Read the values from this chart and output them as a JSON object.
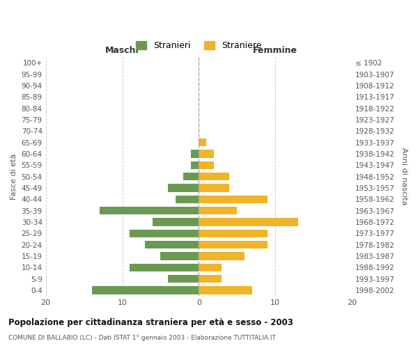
{
  "age_groups": [
    "100+",
    "95-99",
    "90-94",
    "85-89",
    "80-84",
    "75-79",
    "70-74",
    "65-69",
    "60-64",
    "55-59",
    "50-54",
    "45-49",
    "40-44",
    "35-39",
    "30-34",
    "25-29",
    "20-24",
    "15-19",
    "10-14",
    "5-9",
    "0-4"
  ],
  "birth_years": [
    "≤ 1902",
    "1903-1907",
    "1908-1912",
    "1913-1917",
    "1918-1922",
    "1923-1927",
    "1928-1932",
    "1933-1937",
    "1938-1942",
    "1943-1947",
    "1948-1952",
    "1953-1957",
    "1958-1962",
    "1963-1967",
    "1968-1972",
    "1973-1977",
    "1978-1982",
    "1983-1987",
    "1988-1992",
    "1993-1997",
    "1998-2002"
  ],
  "maschi": [
    0,
    0,
    0,
    0,
    0,
    0,
    0,
    0,
    1,
    1,
    2,
    4,
    3,
    13,
    6,
    9,
    7,
    5,
    9,
    4,
    14
  ],
  "femmine": [
    0,
    0,
    0,
    0,
    0,
    0,
    0,
    1,
    2,
    2,
    4,
    4,
    9,
    5,
    13,
    9,
    9,
    6,
    3,
    3,
    7
  ],
  "color_maschi": "#6a9a52",
  "color_femmine": "#f0b429",
  "title": "Popolazione per cittadinanza straniera per età e sesso - 2003",
  "subtitle": "COMUNE DI BALLABIO (LC) - Dati ISTAT 1° gennaio 2003 - Elaborazione TUTTITALIA.IT",
  "xlabel_left": "Maschi",
  "xlabel_right": "Femmine",
  "ylabel_left": "Fasce di età",
  "ylabel_right": "Anni di nascita",
  "legend_maschi": "Stranieri",
  "legend_femmine": "Straniere",
  "xlim": 20,
  "background_color": "#ffffff",
  "grid_color": "#cccccc"
}
